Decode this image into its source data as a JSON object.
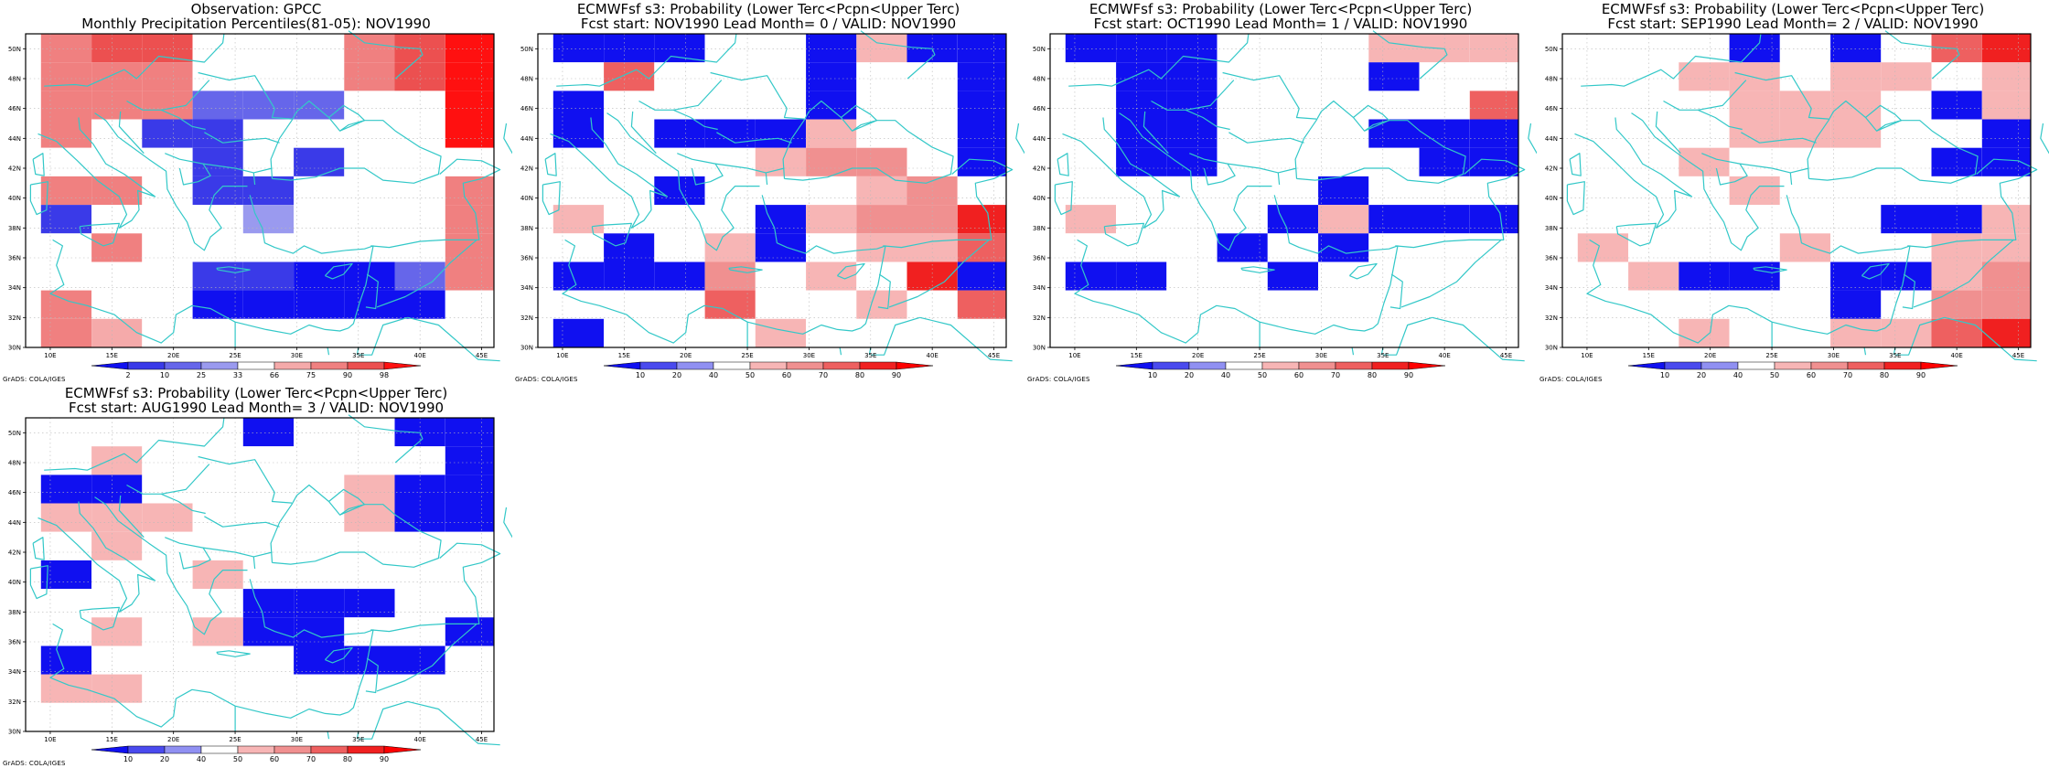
{
  "credit": "GrADS: COLA/IGES",
  "map": {
    "lon_range": [
      8,
      46
    ],
    "lat_range": [
      30,
      51
    ],
    "lon_ticks": [
      "10E",
      "15E",
      "20E",
      "25E",
      "30E",
      "35E",
      "40E",
      "45E"
    ],
    "lat_ticks": [
      "30N",
      "32N",
      "34N",
      "36N",
      "38N",
      "40N",
      "42N",
      "44N",
      "46N",
      "48N",
      "50N"
    ],
    "grid_lines": true,
    "cell_size_deg": [
      2.5,
      2.5
    ],
    "coast_color": "#33c8c8"
  },
  "palettes": {
    "pct": [
      "#1010f0",
      "#3a3ae8",
      "#6666ea",
      "#9a9aef",
      "#ffffff",
      "#f5aaaa",
      "#f08080",
      "#ec5050",
      "#ff1010"
    ],
    "prob": [
      "#1010f0",
      "#4a4aee",
      "#9090f2",
      "#ffffff",
      "#f7b5b5",
      "#f09090",
      "#ee6060",
      "#f02020",
      "#ff0000"
    ]
  },
  "panels": [
    {
      "title1": "Observation: GPCC",
      "title2": "Monthly Precipitation Percentiles(81-05): NOV1990",
      "palette": "pct",
      "colorbar_labels": [
        "2",
        "10",
        "25",
        "33",
        "66",
        "75",
        "90",
        "98"
      ],
      "grid": [
        "677444678",
        "666444678",
        "666222448",
        "641144448",
        "444141444",
        "664114446",
        "144434446",
        "464444446",
        "444110026",
        "644000004",
        "654444444"
      ]
    },
    {
      "title1": "ECMWFsf s3: Probability (Lower Terc<Pcpn<Upper Terc)",
      "title2": "Fcst start: NOV1990  Lead Month= 0 / VALID: NOV1990",
      "palette": "prob",
      "colorbar_labels": [
        "10",
        "20",
        "40",
        "50",
        "60",
        "70",
        "80",
        "90"
      ],
      "grid": [
        "000330400",
        "363330330",
        "033330330",
        "030004330",
        "333345530",
        "330333453",
        "433304557",
        "303403446",
        "000534370",
        "333633436",
        "033343333"
      ]
    },
    {
      "title1": "ECMWFsf s3: Probability (Lower Terc<Pcpn<Upper Terc)",
      "title2": "Fcst start: OCT1990  Lead Month= 1 / VALID: NOV1990",
      "palette": "prob",
      "colorbar_labels": [
        "10",
        "20",
        "40",
        "50",
        "60",
        "70",
        "80",
        "90"
      ],
      "grid": [
        "000333444",
        "300333033",
        "300333336",
        "300333000",
        "300333300",
        "333330333",
        "433304000",
        "333030333",
        "003303333",
        "333333333",
        "333333333"
      ]
    },
    {
      "title1": "ECMWFsf s3: Probability (Lower Terc<Pcpn<Upper Terc)",
      "title2": "Fcst start: SEP1990  Lead Month= 2 / VALID: NOV1990",
      "palette": "prob",
      "colorbar_labels": [
        "10",
        "20",
        "40",
        "50",
        "60",
        "70",
        "80",
        "90"
      ],
      "grid": [
        "333030367",
        "334434434",
        "333444304",
        "333444330",
        "334333300",
        "333433333",
        "333333004",
        "433343344",
        "340030045",
        "333330355",
        "334334467"
      ]
    },
    {
      "title1": "ECMWFsf s3: Probability (Lower Terc<Pcpn<Upper Terc)",
      "title2": "Fcst start: AUG1990  Lead Month= 3 / VALID: NOV1990",
      "palette": "prob",
      "colorbar_labels": [
        "10",
        "20",
        "40",
        "50",
        "60",
        "70",
        "80",
        "90"
      ],
      "grid": [
        "333303300",
        "343333330",
        "003333400",
        "444333400",
        "343333333",
        "033433333",
        "333300033",
        "343400330",
        "033330003",
        "443333333",
        "333333333"
      ]
    }
  ]
}
